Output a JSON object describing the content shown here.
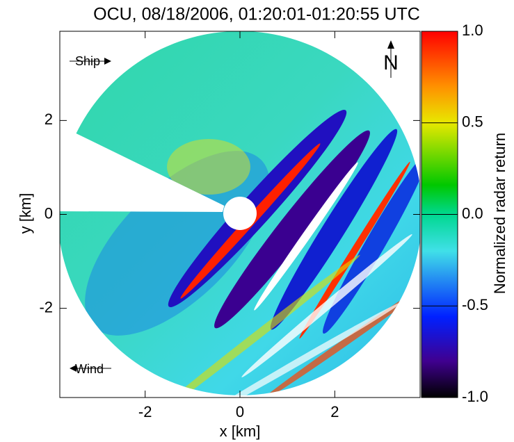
{
  "chart_data": {
    "type": "heatmap",
    "title": "OCU, 08/18/2006, 01:20:01-01:20:55 UTC",
    "x_label": "x [km]",
    "y_label": "y [km]",
    "xlim": [
      -3.8,
      3.8
    ],
    "ylim": [
      -3.9,
      3.9
    ],
    "xticks": [
      -2,
      0,
      2
    ],
    "yticks": [
      -2,
      0,
      2
    ],
    "colorbar": {
      "label": "Normalized radar return",
      "lim": [
        -1,
        1
      ],
      "ticks": [
        {
          "value": -1,
          "label": "-1.0"
        },
        -0.5,
        {
          "value": 0,
          "label": "0.0"
        },
        0.5,
        {
          "value": 1,
          "label": "1.0"
        }
      ]
    },
    "annotations": [
      "Ship",
      "Wind",
      "N"
    ]
  }
}
